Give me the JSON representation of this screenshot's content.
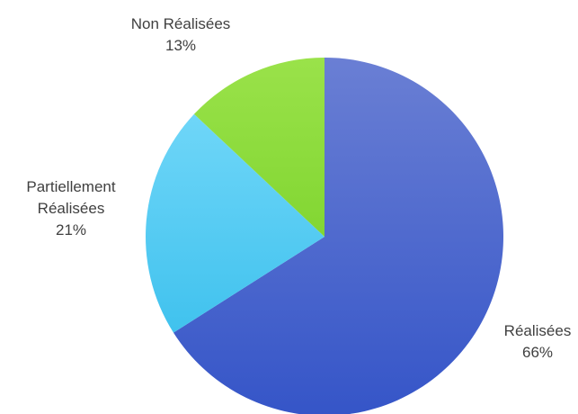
{
  "chart_data": {
    "type": "pie",
    "slices": [
      {
        "label": "Réalisées",
        "label_lines": [
          "Réalisées"
        ],
        "percent_label": "66%",
        "value": 66,
        "color": "#3f5bc8"
      },
      {
        "label": "Partiellement Réalisées",
        "label_lines": [
          "Partiellement",
          "Réalisées"
        ],
        "percent_label": "21%",
        "value": 21,
        "color": "#54c8f2"
      },
      {
        "label": "Non Réalisées",
        "label_lines": [
          "Non Réalisées"
        ],
        "percent_label": "13%",
        "value": 13,
        "color": "#8edb3a"
      }
    ],
    "start_angle_deg": 0,
    "direction": "clockwise",
    "legend": "none",
    "title": ""
  }
}
